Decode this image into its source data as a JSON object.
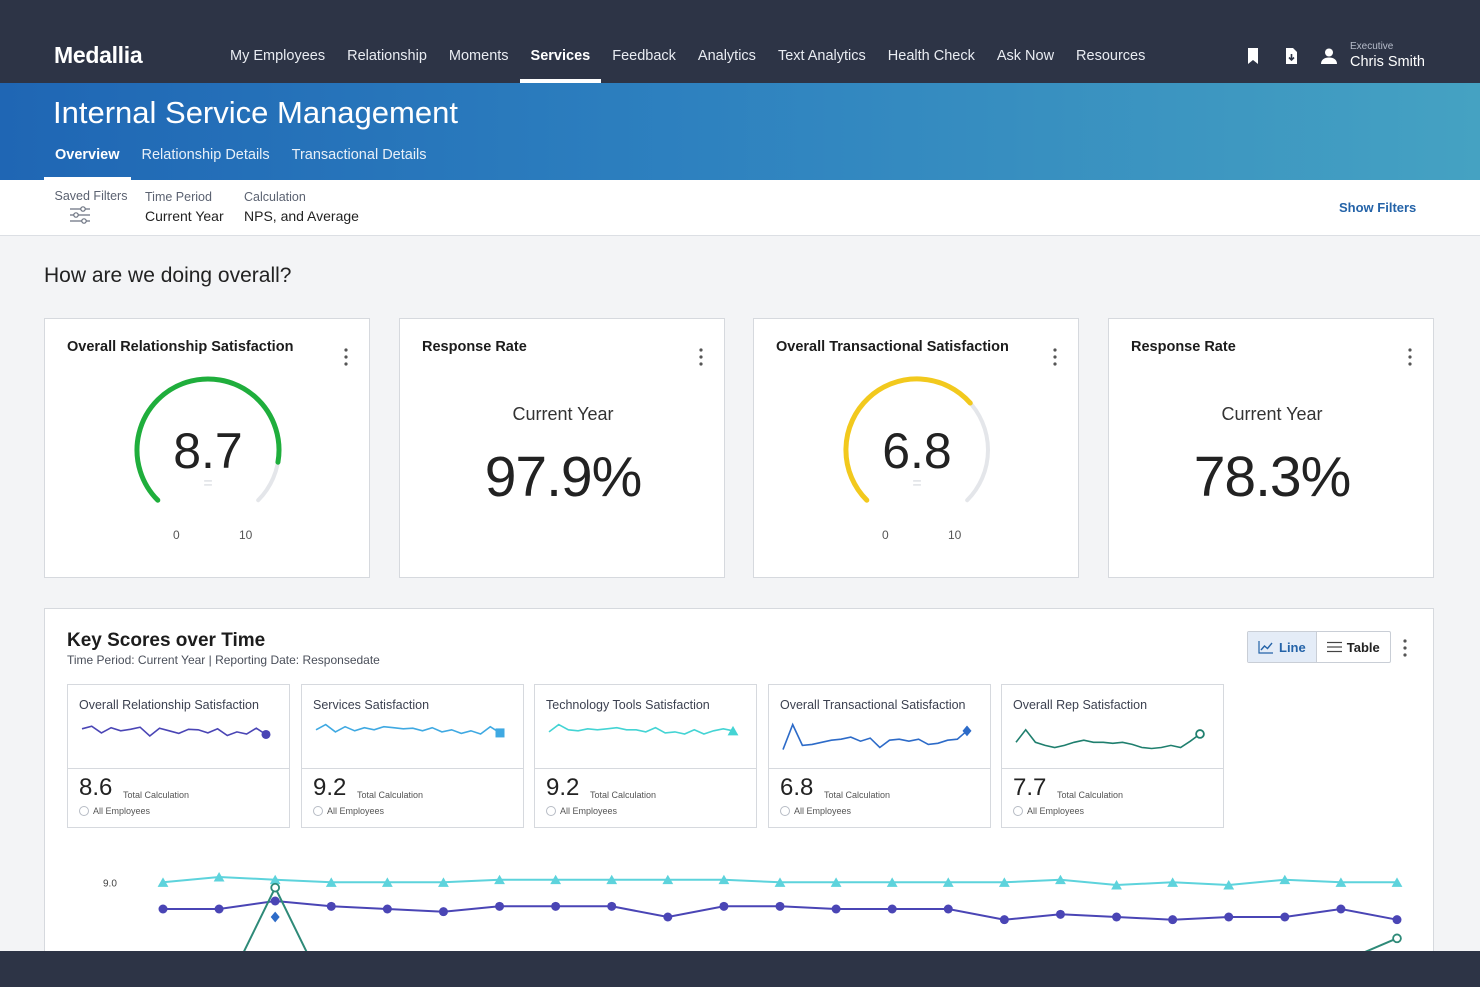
{
  "brand": {
    "logo_text": "Medallia"
  },
  "nav": {
    "items": [
      {
        "label": "My Employees",
        "active": false
      },
      {
        "label": "Relationship",
        "active": false
      },
      {
        "label": "Moments",
        "active": false
      },
      {
        "label": "Services",
        "active": true
      },
      {
        "label": "Feedback",
        "active": false
      },
      {
        "label": "Analytics",
        "active": false
      },
      {
        "label": "Text Analytics",
        "active": false
      },
      {
        "label": "Health Check",
        "active": false
      },
      {
        "label": "Ask Now",
        "active": false
      },
      {
        "label": "Resources",
        "active": false
      }
    ],
    "icons": [
      "bookmark-icon",
      "export-icon",
      "user-icon"
    ]
  },
  "user": {
    "role": "Executive",
    "name": "Chris Smith"
  },
  "page": {
    "title": "Internal Service Management",
    "tabs": [
      {
        "label": "Overview",
        "active": true
      },
      {
        "label": "Relationship Details",
        "active": false
      },
      {
        "label": "Transactional Details",
        "active": false
      }
    ]
  },
  "filters": {
    "saved_filters_label": "Saved Filters",
    "time_period": {
      "label": "Time Period",
      "value": "Current Year"
    },
    "calculation": {
      "label": "Calculation",
      "value": "NPS, and Average"
    },
    "show_filters_label": "Show Filters"
  },
  "overview": {
    "heading": "How are we doing overall?",
    "cards": [
      {
        "type": "gauge",
        "title": "Overall Relationship Satisfaction",
        "value": "8.7",
        "score": 8.7,
        "min": "0",
        "max": "10",
        "min_value": 0,
        "max_value": 10,
        "color": "#1fae3c",
        "eq_symbol": "="
      },
      {
        "type": "rate",
        "title": "Response Rate",
        "period": "Current Year",
        "value": "97.9%"
      },
      {
        "type": "gauge",
        "title": "Overall Transactional Satisfaction",
        "value": "6.8",
        "score": 6.8,
        "min": "0",
        "max": "10",
        "min_value": 0,
        "max_value": 10,
        "color": "#f2c91d",
        "eq_symbol": "="
      },
      {
        "type": "rate",
        "title": "Response Rate",
        "period": "Current Year",
        "value": "78.3%"
      }
    ]
  },
  "key_scores": {
    "title": "Key Scores over Time",
    "subtitle": "Time Period: Current Year | Reporting Date: Responsedate",
    "view_toggle": {
      "line_label": "Line",
      "table_label": "Table",
      "active": "Line"
    },
    "metrics": [
      {
        "title": "Overall Relationship Satisfaction",
        "value": "8.6",
        "calc_label": "Total Calculation",
        "filter_label": "All Employees",
        "color": "#4a45b5",
        "marker": "circle",
        "trend": [
          6.2,
          6.7,
          5.4,
          6.4,
          5.8,
          6.1,
          6.5,
          4.8,
          6.3,
          5.8,
          5.3,
          6.1,
          6.0,
          5.4,
          6.2,
          4.9,
          5.6,
          5.2,
          6.3,
          5.1
        ]
      },
      {
        "title": "Services Satisfaction",
        "value": "9.2",
        "calc_label": "Total Calculation",
        "filter_label": "All Employees",
        "color": "#3fa9e2",
        "marker": "square",
        "trend": [
          6.0,
          7.0,
          5.6,
          6.6,
          5.8,
          6.4,
          6.0,
          6.6,
          6.4,
          6.2,
          6.3,
          5.8,
          6.4,
          5.6,
          6.0,
          5.3,
          5.8,
          5.2,
          6.6,
          5.4
        ]
      },
      {
        "title": "Technology Tools Satisfaction",
        "value": "9.2",
        "calc_label": "Total Calculation",
        "filter_label": "All Employees",
        "color": "#44d4d4",
        "marker": "triangle",
        "trend": [
          5.6,
          7.0,
          6.0,
          5.8,
          6.2,
          6.0,
          6.2,
          6.4,
          6.0,
          6.0,
          5.6,
          6.4,
          5.4,
          5.6,
          5.2,
          6.0,
          5.2,
          5.8,
          6.2,
          5.8
        ]
      },
      {
        "title": "Overall Transactional Satisfaction",
        "value": "6.8",
        "calc_label": "Total Calculation",
        "filter_label": "All Employees",
        "color": "#2d6bc8",
        "marker": "diamond",
        "trend": [
          2.2,
          7.0,
          3.0,
          3.2,
          3.6,
          4.0,
          4.2,
          4.6,
          3.8,
          4.4,
          2.6,
          4.0,
          4.2,
          3.8,
          4.2,
          3.2,
          3.4,
          4.0,
          4.2,
          5.8
        ]
      },
      {
        "title": "Overall Rep Satisfaction",
        "value": "7.7",
        "calc_label": "Total Calculation",
        "filter_label": "All Employees",
        "color": "#1f7f6e",
        "marker": "ring",
        "trend": [
          3.6,
          6.0,
          3.6,
          3.0,
          2.6,
          3.0,
          3.6,
          4.0,
          3.6,
          3.6,
          3.4,
          3.6,
          3.2,
          2.6,
          2.4,
          2.6,
          3.0,
          2.6,
          3.8,
          5.2
        ]
      }
    ],
    "chart_data": {
      "type": "line",
      "ytick_labels": [
        "9.0"
      ],
      "ylim": [
        8.6,
        9.05
      ],
      "series": [
        {
          "color": "#5dd3dc",
          "marker": "triangle",
          "values": [
            9.0,
            9.02,
            9.01,
            9.0,
            9.0,
            9.0,
            9.01,
            9.01,
            9.01,
            9.01,
            9.01,
            9.0,
            9.0,
            9.0,
            9.0,
            9.0,
            9.01,
            8.99,
            9.0,
            8.99,
            9.01,
            9.0,
            9.0
          ]
        },
        {
          "color": "#4a45b5",
          "marker": "circle",
          "values": [
            8.9,
            8.9,
            8.93,
            8.91,
            8.9,
            8.89,
            8.91,
            8.91,
            8.91,
            8.87,
            8.91,
            8.91,
            8.9,
            8.9,
            8.9,
            8.86,
            8.88,
            8.87,
            8.86,
            8.87,
            8.87,
            8.9,
            8.86
          ]
        },
        {
          "color": "#2e8a78",
          "marker": "ring",
          "values": [
            null,
            8.55,
            8.98,
            8.55,
            null,
            null,
            null,
            null,
            null,
            null,
            null,
            null,
            null,
            null,
            null,
            null,
            null,
            null,
            null,
            null,
            null,
            8.7,
            8.79
          ]
        },
        {
          "color": "#2d6bc8",
          "marker": "diamond",
          "values": [
            null,
            null,
            8.87,
            null,
            null,
            null,
            null,
            null,
            null,
            null,
            null,
            null,
            null,
            null,
            null,
            null,
            null,
            null,
            null,
            null,
            null,
            null,
            null
          ]
        }
      ]
    }
  }
}
